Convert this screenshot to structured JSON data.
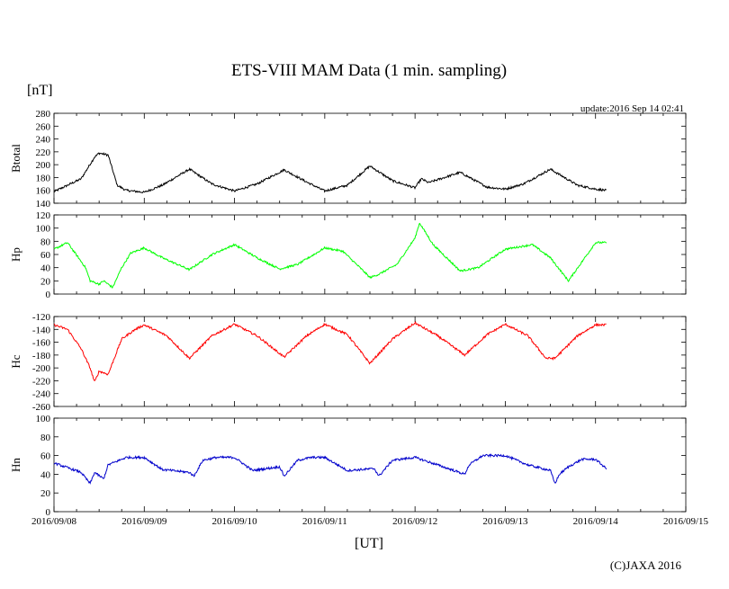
{
  "chart_data": {
    "type": "line",
    "title": "ETS-VIII MAM Data (1 min. sampling)",
    "unit_label": "[nT]",
    "update_text": "update:2016 Sep 14 02:41",
    "xlabel": "[UT]",
    "copyright": "(C)JAXA 2016",
    "x_tick_labels": [
      "2016/09/08",
      "2016/09/09",
      "2016/09/10",
      "2016/09/11",
      "2016/09/12",
      "2016/09/13",
      "2016/09/14",
      "2016/09/15"
    ],
    "xlim": [
      0,
      7
    ],
    "x_unit": "days since 2016/09/08 00:00 UT",
    "panels": [
      {
        "name": "Btotal",
        "ylabel": "Btotal",
        "color": "#000000",
        "ylim": [
          140,
          280
        ],
        "y_ticks": [
          140,
          160,
          180,
          200,
          220,
          240,
          260,
          280
        ],
        "x": [
          0,
          0.3,
          0.45,
          0.5,
          0.6,
          0.7,
          0.8,
          1.0,
          1.2,
          1.5,
          1.75,
          2.0,
          2.25,
          2.55,
          2.8,
          3.0,
          3.25,
          3.5,
          3.75,
          4.0,
          4.07,
          4.15,
          4.5,
          4.8,
          5.0,
          5.2,
          5.5,
          5.8,
          6.0,
          6.12
        ],
        "values": [
          158,
          178,
          212,
          218,
          215,
          168,
          160,
          157,
          168,
          193,
          170,
          159,
          170,
          192,
          173,
          159,
          168,
          198,
          175,
          164,
          178,
          172,
          188,
          165,
          162,
          170,
          193,
          168,
          162,
          160
        ]
      },
      {
        "name": "Hp",
        "ylabel": "Hp",
        "color": "#00ff00",
        "ylim": [
          0,
          120
        ],
        "y_ticks": [
          0,
          20,
          40,
          60,
          80,
          100,
          120
        ],
        "x": [
          0,
          0.15,
          0.35,
          0.4,
          0.5,
          0.55,
          0.65,
          0.75,
          0.85,
          1.0,
          1.2,
          1.5,
          1.75,
          2.0,
          2.25,
          2.5,
          2.7,
          3.0,
          3.2,
          3.45,
          3.5,
          3.6,
          3.8,
          4.0,
          4.05,
          4.2,
          4.5,
          4.7,
          5.0,
          5.3,
          5.5,
          5.7,
          6.0,
          6.12
        ],
        "values": [
          68,
          78,
          40,
          20,
          15,
          20,
          10,
          40,
          62,
          70,
          55,
          37,
          60,
          75,
          55,
          38,
          45,
          70,
          65,
          32,
          25,
          30,
          45,
          85,
          108,
          75,
          35,
          40,
          68,
          75,
          55,
          20,
          78,
          78
        ]
      },
      {
        "name": "Hc",
        "ylabel": "Hc",
        "color": "#ff0000",
        "ylim": [
          -260,
          -120
        ],
        "y_ticks": [
          -260,
          -240,
          -220,
          -200,
          -180,
          -160,
          -140,
          -120
        ],
        "x": [
          0,
          0.15,
          0.3,
          0.4,
          0.45,
          0.5,
          0.6,
          0.75,
          0.9,
          1.0,
          1.25,
          1.5,
          1.75,
          2.0,
          2.25,
          2.55,
          2.8,
          3.0,
          3.25,
          3.5,
          3.75,
          4.0,
          4.25,
          4.55,
          4.8,
          5.0,
          5.25,
          5.45,
          5.55,
          5.8,
          6.0,
          6.12
        ],
        "values": [
          -133,
          -140,
          -170,
          -200,
          -222,
          -205,
          -210,
          -155,
          -140,
          -133,
          -150,
          -185,
          -150,
          -132,
          -150,
          -183,
          -150,
          -132,
          -148,
          -193,
          -155,
          -130,
          -150,
          -180,
          -148,
          -132,
          -150,
          -185,
          -185,
          -150,
          -133,
          -133
        ]
      },
      {
        "name": "Hn",
        "ylabel": "Hn",
        "color": "#0000cc",
        "ylim": [
          0,
          100
        ],
        "y_ticks": [
          0,
          20,
          40,
          60,
          80,
          100
        ],
        "x": [
          0,
          0.3,
          0.4,
          0.45,
          0.55,
          0.6,
          0.8,
          1.0,
          1.2,
          1.5,
          1.55,
          1.65,
          1.8,
          2.0,
          2.2,
          2.5,
          2.55,
          2.7,
          2.85,
          3.0,
          3.25,
          3.55,
          3.6,
          3.75,
          4.0,
          4.25,
          4.55,
          4.6,
          4.75,
          5.0,
          5.25,
          5.5,
          5.55,
          5.6,
          5.7,
          5.85,
          6.0,
          6.12
        ],
        "values": [
          52,
          42,
          30,
          42,
          35,
          50,
          58,
          58,
          45,
          42,
          38,
          55,
          58,
          58,
          44,
          48,
          38,
          55,
          58,
          58,
          44,
          46,
          38,
          55,
          58,
          50,
          40,
          50,
          60,
          60,
          50,
          44,
          30,
          40,
          48,
          56,
          56,
          46
        ]
      }
    ]
  }
}
